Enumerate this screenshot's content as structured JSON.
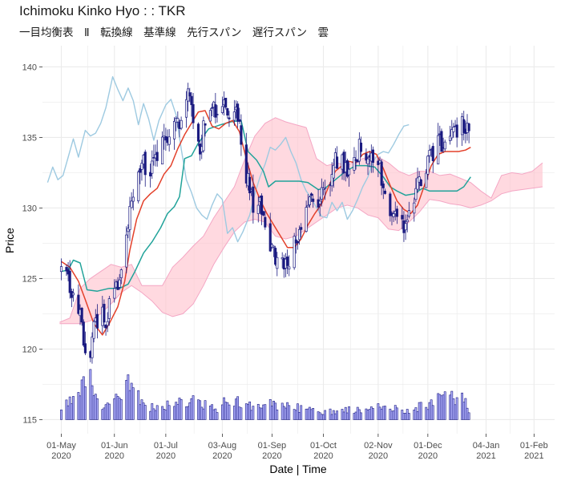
{
  "chart_data": {
    "type": "line",
    "title": "Ichimoku Kinko Hyo : : TKR",
    "subtitle": "一目均衡表　Ⅱ　転換線　基準線　先行スパン　遅行スパン　雲",
    "xlabel": "Date | Time",
    "ylabel": "Price",
    "x_range": [
      "2020-04-20",
      "2021-02-13"
    ],
    "ylim": [
      114,
      141.5
    ],
    "y_ticks": [
      115,
      120,
      125,
      130,
      135,
      140
    ],
    "x_ticks": [
      {
        "date": "2020-05-01",
        "line1": "01-May",
        "line2": "2020"
      },
      {
        "date": "2020-06-01",
        "line1": "01-Jun",
        "line2": "2020"
      },
      {
        "date": "2020-07-01",
        "line1": "01-Jul",
        "line2": "2020"
      },
      {
        "date": "2020-08-03",
        "line1": "03-Aug",
        "line2": "2020"
      },
      {
        "date": "2020-09-01",
        "line1": "01-Sep",
        "line2": "2020"
      },
      {
        "date": "2020-10-01",
        "line1": "01-Oct",
        "line2": "2020"
      },
      {
        "date": "2020-11-02",
        "line1": "02-Nov",
        "line2": "2020"
      },
      {
        "date": "2020-12-01",
        "line1": "01-Dec",
        "line2": "2020"
      },
      {
        "date": "2021-01-04",
        "line1": "04-Jan",
        "line2": "2021"
      },
      {
        "date": "2021-02-01",
        "line1": "01-Feb",
        "line2": "2021"
      }
    ],
    "grid": true,
    "legend": "none",
    "colors": {
      "candle": "#1a1a80",
      "volume_fill": "#b3b3ff",
      "volume_edge": "#1a1a80",
      "tenkan": "#e3402a",
      "kijun": "#21a39a",
      "chikou": "#9ecae1",
      "kumo": "#ffc0cb",
      "grid": "#ebebeb"
    },
    "price_path": [
      [
        "2020-05-01",
        125.2
      ],
      [
        "2020-05-05",
        124.6
      ],
      [
        "2020-05-08",
        123.8
      ],
      [
        "2020-05-12",
        122.3
      ],
      [
        "2020-05-15",
        120.0
      ],
      [
        "2020-05-18",
        119.0
      ],
      [
        "2020-05-20",
        121.2
      ],
      [
        "2020-05-23",
        122.4
      ],
      [
        "2020-05-27",
        122.0
      ],
      [
        "2020-05-30",
        123.8
      ],
      [
        "2020-06-03",
        124.8
      ],
      [
        "2020-06-06",
        126.2
      ],
      [
        "2020-06-09",
        129.0
      ],
      [
        "2020-06-12",
        130.5
      ],
      [
        "2020-06-15",
        132.5
      ],
      [
        "2020-06-18",
        133.5
      ],
      [
        "2020-06-21",
        132.0
      ],
      [
        "2020-06-24",
        132.8
      ],
      [
        "2020-06-27",
        134.5
      ],
      [
        "2020-06-30",
        135.5
      ],
      [
        "2020-07-03",
        135.0
      ],
      [
        "2020-07-06",
        135.8
      ],
      [
        "2020-07-09",
        136.2
      ],
      [
        "2020-07-12",
        137.0
      ],
      [
        "2020-07-15",
        138.2
      ],
      [
        "2020-07-17",
        136.0
      ],
      [
        "2020-07-20",
        134.0
      ],
      [
        "2020-07-23",
        135.5
      ],
      [
        "2020-07-26",
        137.0
      ],
      [
        "2020-07-29",
        137.1
      ],
      [
        "2020-08-01",
        136.5
      ],
      [
        "2020-08-04",
        136.9
      ],
      [
        "2020-08-07",
        137.0
      ],
      [
        "2020-08-10",
        136.9
      ],
      [
        "2020-08-13",
        135.5
      ],
      [
        "2020-08-16",
        133.0
      ],
      [
        "2020-08-19",
        131.0
      ],
      [
        "2020-08-22",
        129.5
      ],
      [
        "2020-08-25",
        130.5
      ],
      [
        "2020-08-28",
        128.5
      ],
      [
        "2020-08-31",
        127.5
      ],
      [
        "2020-09-03",
        126.8
      ],
      [
        "2020-09-06",
        126.2
      ],
      [
        "2020-09-09",
        126.0
      ],
      [
        "2020-09-12",
        126.8
      ],
      [
        "2020-09-15",
        127.5
      ],
      [
        "2020-09-18",
        128.5
      ],
      [
        "2020-09-21",
        129.5
      ],
      [
        "2020-09-24",
        130.5
      ],
      [
        "2020-09-27",
        130.0
      ],
      [
        "2020-09-30",
        131.0
      ],
      [
        "2020-10-03",
        131.5
      ],
      [
        "2020-10-06",
        132.8
      ],
      [
        "2020-10-09",
        133.5
      ],
      [
        "2020-10-12",
        133.2
      ],
      [
        "2020-10-15",
        132.8
      ],
      [
        "2020-10-18",
        133.5
      ],
      [
        "2020-10-21",
        134.0
      ],
      [
        "2020-10-24",
        134.5
      ],
      [
        "2020-10-27",
        133.6
      ],
      [
        "2020-10-30",
        133.8
      ],
      [
        "2020-11-02",
        133.0
      ],
      [
        "2020-11-05",
        132.0
      ],
      [
        "2020-11-08",
        130.6
      ],
      [
        "2020-11-11",
        129.5
      ],
      [
        "2020-11-14",
        130.5
      ],
      [
        "2020-11-17",
        129.0
      ],
      [
        "2020-11-20",
        129.4
      ],
      [
        "2020-11-23",
        130.5
      ],
      [
        "2020-11-26",
        132.0
      ],
      [
        "2020-11-29",
        133.0
      ],
      [
        "2020-12-02",
        133.5
      ],
      [
        "2020-12-05",
        134.0
      ],
      [
        "2020-12-08",
        134.5
      ],
      [
        "2020-12-11",
        134.0
      ],
      [
        "2020-12-14",
        134.8
      ],
      [
        "2020-12-17",
        135.3
      ],
      [
        "2020-12-20",
        135.6
      ],
      [
        "2020-12-23",
        135.9
      ],
      [
        "2020-12-26",
        136.0
      ]
    ],
    "tenkan": [
      [
        "2020-05-01",
        126.2
      ],
      [
        "2020-05-06",
        125.8
      ],
      [
        "2020-05-11",
        124.8
      ],
      [
        "2020-05-15",
        123.5
      ],
      [
        "2020-05-20",
        121.8
      ],
      [
        "2020-05-25",
        121.0
      ],
      [
        "2020-05-29",
        121.8
      ],
      [
        "2020-06-03",
        123.0
      ],
      [
        "2020-06-07",
        124.8
      ],
      [
        "2020-06-10",
        127.0
      ],
      [
        "2020-06-14",
        129.2
      ],
      [
        "2020-06-18",
        130.5
      ],
      [
        "2020-06-22",
        131.0
      ],
      [
        "2020-06-26",
        131.4
      ],
      [
        "2020-06-30",
        132.4
      ],
      [
        "2020-07-04",
        133.0
      ],
      [
        "2020-07-08",
        134.2
      ],
      [
        "2020-07-12",
        135.2
      ],
      [
        "2020-07-16",
        136.0
      ],
      [
        "2020-07-20",
        136.8
      ],
      [
        "2020-07-24",
        136.9
      ],
      [
        "2020-07-28",
        135.8
      ],
      [
        "2020-08-01",
        135.6
      ],
      [
        "2020-08-05",
        136.0
      ],
      [
        "2020-08-09",
        136.2
      ],
      [
        "2020-08-13",
        135.4
      ],
      [
        "2020-08-17",
        133.5
      ],
      [
        "2020-08-21",
        131.8
      ],
      [
        "2020-08-25",
        130.6
      ],
      [
        "2020-08-29",
        129.6
      ],
      [
        "2020-09-02",
        128.8
      ],
      [
        "2020-09-06",
        128.0
      ],
      [
        "2020-09-10",
        127.2
      ],
      [
        "2020-09-14",
        127.2
      ],
      [
        "2020-09-18",
        127.8
      ],
      [
        "2020-09-22",
        128.8
      ],
      [
        "2020-09-26",
        129.6
      ],
      [
        "2020-09-30",
        130.3
      ],
      [
        "2020-10-04",
        131.5
      ],
      [
        "2020-10-08",
        132.6
      ],
      [
        "2020-10-12",
        133.0
      ],
      [
        "2020-10-16",
        133.3
      ],
      [
        "2020-10-20",
        133.2
      ],
      [
        "2020-10-24",
        133.8
      ],
      [
        "2020-10-28",
        134.0
      ],
      [
        "2020-11-01",
        133.8
      ],
      [
        "2020-11-05",
        132.8
      ],
      [
        "2020-11-09",
        131.6
      ],
      [
        "2020-11-13",
        130.5
      ],
      [
        "2020-11-17",
        129.9
      ],
      [
        "2020-11-21",
        129.6
      ],
      [
        "2020-11-25",
        130.2
      ],
      [
        "2020-11-29",
        131.6
      ],
      [
        "2020-12-03",
        133.0
      ],
      [
        "2020-12-07",
        133.8
      ],
      [
        "2020-12-11",
        134.0
      ],
      [
        "2020-12-15",
        134.0
      ],
      [
        "2020-12-19",
        134.0
      ],
      [
        "2020-12-23",
        134.1
      ],
      [
        "2020-12-26",
        134.3
      ]
    ],
    "kijun": [
      [
        "2020-05-01",
        125.5
      ],
      [
        "2020-05-05",
        125.6
      ],
      [
        "2020-05-08",
        126.3
      ],
      [
        "2020-05-12",
        126.1
      ],
      [
        "2020-05-16",
        124.2
      ],
      [
        "2020-05-22",
        124.1
      ],
      [
        "2020-05-29",
        124.3
      ],
      [
        "2020-06-04",
        124.3
      ],
      [
        "2020-06-09",
        124.6
      ],
      [
        "2020-06-13",
        125.5
      ],
      [
        "2020-06-18",
        126.8
      ],
      [
        "2020-06-23",
        127.6
      ],
      [
        "2020-06-28",
        128.6
      ],
      [
        "2020-07-02",
        129.6
      ],
      [
        "2020-07-06",
        130.1
      ],
      [
        "2020-07-09",
        130.8
      ],
      [
        "2020-07-12",
        133.5
      ],
      [
        "2020-07-16",
        133.7
      ],
      [
        "2020-07-20",
        134.6
      ],
      [
        "2020-07-26",
        135.6
      ],
      [
        "2020-08-02",
        135.9
      ],
      [
        "2020-08-08",
        136.1
      ],
      [
        "2020-08-14",
        136.2
      ],
      [
        "2020-08-18",
        134.0
      ],
      [
        "2020-08-23",
        133.4
      ],
      [
        "2020-08-27",
        132.6
      ],
      [
        "2020-08-30",
        131.5
      ],
      [
        "2020-09-03",
        131.9
      ],
      [
        "2020-09-10",
        131.9
      ],
      [
        "2020-09-17",
        131.9
      ],
      [
        "2020-09-22",
        131.8
      ],
      [
        "2020-09-28",
        131.3
      ],
      [
        "2020-10-02",
        131.4
      ],
      [
        "2020-10-08",
        132.0
      ],
      [
        "2020-10-14",
        132.6
      ],
      [
        "2020-10-20",
        133.0
      ],
      [
        "2020-10-26",
        133.0
      ],
      [
        "2020-10-31",
        132.9
      ],
      [
        "2020-11-05",
        132.2
      ],
      [
        "2020-11-09",
        131.5
      ],
      [
        "2020-11-13",
        131.2
      ],
      [
        "2020-11-18",
        130.9
      ],
      [
        "2020-11-23",
        131.0
      ],
      [
        "2020-11-28",
        131.4
      ],
      [
        "2020-12-02",
        131.2
      ],
      [
        "2020-12-08",
        131.2
      ],
      [
        "2020-12-14",
        131.2
      ],
      [
        "2020-12-18",
        131.2
      ],
      [
        "2020-12-22",
        131.5
      ],
      [
        "2020-12-26",
        132.2
      ]
    ],
    "chikou": [
      [
        "2020-04-23",
        131.8
      ],
      [
        "2020-04-26",
        132.9
      ],
      [
        "2020-04-29",
        132.0
      ],
      [
        "2020-05-02",
        132.3
      ],
      [
        "2020-05-05",
        133.6
      ],
      [
        "2020-05-08",
        134.9
      ],
      [
        "2020-05-11",
        133.6
      ],
      [
        "2020-05-15",
        135.5
      ],
      [
        "2020-05-18",
        135.1
      ],
      [
        "2020-05-21",
        135.3
      ],
      [
        "2020-05-24",
        136.0
      ],
      [
        "2020-05-27",
        137.1
      ],
      [
        "2020-05-31",
        139.3
      ],
      [
        "2020-06-03",
        138.4
      ],
      [
        "2020-06-06",
        137.6
      ],
      [
        "2020-06-09",
        138.5
      ],
      [
        "2020-06-12",
        137.6
      ],
      [
        "2020-06-15",
        135.9
      ],
      [
        "2020-06-18",
        137.4
      ],
      [
        "2020-06-21",
        136.3
      ],
      [
        "2020-06-24",
        134.8
      ],
      [
        "2020-06-27",
        136.2
      ],
      [
        "2020-07-01",
        137.3
      ],
      [
        "2020-07-04",
        137.7
      ],
      [
        "2020-07-07",
        136.6
      ],
      [
        "2020-07-10",
        134.2
      ],
      [
        "2020-07-13",
        132.0
      ],
      [
        "2020-07-16",
        131.1
      ],
      [
        "2020-07-19",
        130.0
      ],
      [
        "2020-07-22",
        129.5
      ],
      [
        "2020-07-25",
        129.2
      ],
      [
        "2020-07-28",
        130.2
      ],
      [
        "2020-07-31",
        131.0
      ],
      [
        "2020-08-03",
        130.6
      ],
      [
        "2020-08-06",
        128.2
      ],
      [
        "2020-08-09",
        128.6
      ],
      [
        "2020-08-12",
        127.6
      ],
      [
        "2020-08-15",
        128.3
      ],
      [
        "2020-08-19",
        129.5
      ],
      [
        "2020-08-22",
        131.0
      ],
      [
        "2020-08-25",
        132.2
      ],
      [
        "2020-08-28",
        133.1
      ],
      [
        "2020-08-31",
        134.3
      ],
      [
        "2020-09-03",
        134.1
      ],
      [
        "2020-09-06",
        134.5
      ],
      [
        "2020-09-09",
        135.0
      ],
      [
        "2020-09-12",
        134.0
      ],
      [
        "2020-09-15",
        133.2
      ],
      [
        "2020-09-18",
        132.0
      ],
      [
        "2020-09-21",
        131.2
      ],
      [
        "2020-09-24",
        130.7
      ],
      [
        "2020-09-27",
        130.0
      ],
      [
        "2020-09-30",
        129.4
      ],
      [
        "2020-10-03",
        129.3
      ],
      [
        "2020-10-06",
        130.4
      ],
      [
        "2020-10-09",
        129.8
      ],
      [
        "2020-10-12",
        130.4
      ],
      [
        "2020-10-15",
        129.2
      ],
      [
        "2020-10-18",
        129.8
      ],
      [
        "2020-10-21",
        130.6
      ],
      [
        "2020-10-24",
        131.5
      ],
      [
        "2020-10-27",
        132.2
      ],
      [
        "2020-10-30",
        133.3
      ],
      [
        "2020-11-02",
        133.8
      ],
      [
        "2020-11-05",
        134.0
      ],
      [
        "2020-11-08",
        133.9
      ],
      [
        "2020-11-11",
        134.5
      ],
      [
        "2020-11-14",
        135.2
      ],
      [
        "2020-11-17",
        135.8
      ],
      [
        "2020-11-20",
        135.9
      ]
    ],
    "kumo": {
      "dates": [
        "2020-04-30",
        "2020-05-06",
        "2020-05-12",
        "2020-05-18",
        "2020-05-24",
        "2020-05-30",
        "2020-06-05",
        "2020-06-11",
        "2020-06-17",
        "2020-06-23",
        "2020-06-29",
        "2020-07-05",
        "2020-07-11",
        "2020-07-17",
        "2020-07-23",
        "2020-07-29",
        "2020-08-04",
        "2020-08-10",
        "2020-08-16",
        "2020-08-22",
        "2020-08-28",
        "2020-09-03",
        "2020-09-09",
        "2020-09-15",
        "2020-09-21",
        "2020-09-27",
        "2020-10-03",
        "2020-10-09",
        "2020-10-15",
        "2020-10-21",
        "2020-10-27",
        "2020-11-02",
        "2020-11-08",
        "2020-11-14",
        "2020-11-20",
        "2020-11-26",
        "2020-12-02",
        "2020-12-08",
        "2020-12-14",
        "2020-12-20",
        "2020-12-26",
        "2021-01-01",
        "2021-01-07",
        "2021-01-13",
        "2021-01-19",
        "2021-01-25",
        "2021-01-31",
        "2021-02-06"
      ],
      "upper": [
        121.9,
        122.2,
        124.3,
        125.0,
        125.5,
        126.0,
        125.8,
        126.0,
        124.5,
        124.5,
        124.5,
        125.8,
        126.5,
        127.3,
        128.0,
        129.3,
        130.4,
        131.5,
        133.4,
        135.1,
        136.0,
        136.4,
        136.1,
        135.9,
        135.7,
        133.5,
        133.0,
        133.2,
        133.0,
        133.4,
        133.6,
        133.6,
        133.2,
        132.6,
        132.3,
        132.6,
        132.6,
        132.3,
        132.4,
        132.1,
        131.8,
        131.2,
        130.7,
        132.3,
        132.5,
        132.4,
        132.6,
        133.2
      ],
      "lower": [
        121.8,
        121.8,
        121.8,
        122.0,
        122.5,
        123.2,
        124.0,
        124.5,
        124.0,
        123.4,
        122.6,
        122.3,
        122.5,
        123.2,
        124.5,
        126.0,
        127.2,
        128.3,
        129.0,
        129.2,
        129.0,
        128.0,
        127.8,
        128.0,
        128.5,
        129.0,
        129.5,
        130.0,
        130.2,
        130.0,
        129.5,
        129.3,
        128.5,
        128.4,
        129.0,
        129.7,
        130.6,
        130.5,
        130.3,
        130.2,
        130.0,
        130.2,
        130.5,
        131.0,
        131.2,
        131.3,
        131.4,
        131.5
      ]
    },
    "volume": {
      "axis_base": 115,
      "note": "volume bars drawn rising from the 115 price baseline (price-axis units)",
      "peaks": [
        [
          "2020-05-01",
          116.2
        ],
        [
          "2020-05-10",
          117.2
        ],
        [
          "2020-05-18",
          119.0
        ],
        [
          "2020-05-26",
          116.0
        ],
        [
          "2020-06-03",
          117.2
        ],
        [
          "2020-06-08",
          119.0
        ],
        [
          "2020-06-14",
          117.5
        ],
        [
          "2020-06-22",
          116.2
        ],
        [
          "2020-07-01",
          116.3
        ],
        [
          "2020-07-15",
          116.8
        ],
        [
          "2020-08-01",
          116.0
        ],
        [
          "2020-08-08",
          117.3
        ],
        [
          "2020-08-15",
          116.2
        ],
        [
          "2020-09-01",
          116.5
        ],
        [
          "2020-09-15",
          116.2
        ],
        [
          "2020-10-01",
          115.7
        ],
        [
          "2020-10-20",
          116.0
        ],
        [
          "2020-11-05",
          116.3
        ],
        [
          "2020-11-20",
          115.8
        ],
        [
          "2020-12-06",
          116.9
        ],
        [
          "2020-12-20",
          117.4
        ],
        [
          "2020-12-26",
          115.8
        ]
      ]
    }
  }
}
